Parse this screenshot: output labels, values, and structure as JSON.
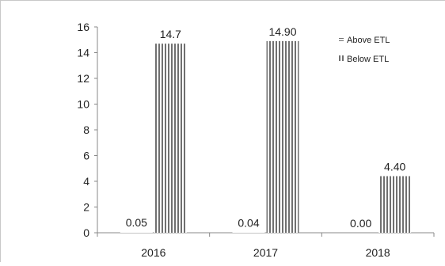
{
  "chart_data": {
    "type": "bar",
    "categories": [
      "2016",
      "2017",
      "2018"
    ],
    "series": [
      {
        "name": "Above ETL",
        "values": [
          0.05,
          0.04,
          0.0
        ],
        "labels": [
          "0.05",
          "0.04",
          "0.00"
        ],
        "pattern": "horizontal-stripes"
      },
      {
        "name": "Below ETL",
        "values": [
          14.7,
          14.9,
          4.4
        ],
        "labels": [
          "14.7",
          "14.90",
          "4.40"
        ],
        "pattern": "vertical-stripes"
      }
    ],
    "ylim": [
      0,
      16
    ],
    "yticks": [
      "0",
      "2",
      "4",
      "6",
      "8",
      "10",
      "12",
      "14",
      "16"
    ],
    "legend_position": "top-right",
    "grid": false,
    "colors": {
      "bar_stripe": "#707070",
      "axis": "#888888",
      "text": "#222222"
    }
  }
}
